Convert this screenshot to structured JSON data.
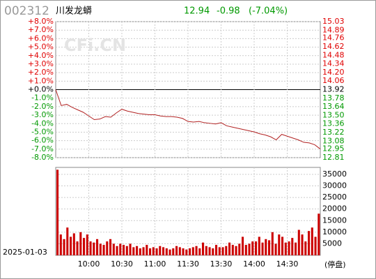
{
  "header": {
    "code": "002312",
    "name": "川发龙蟒",
    "price": "12.94",
    "change": "-0.98",
    "change_pct": "(-7.04%)"
  },
  "up_color": "#e00000",
  "down_color": "#009900",
  "flat_color": "#000000",
  "chart_data": [
    {
      "type": "line",
      "x": [
        0,
        5,
        10,
        15,
        20,
        25,
        30,
        35,
        40,
        45,
        50,
        55,
        60,
        65,
        70,
        75,
        80,
        85,
        90,
        95,
        100,
        105,
        110,
        115,
        120,
        125,
        130,
        135,
        140,
        145,
        150,
        155,
        160,
        165,
        170,
        175,
        180,
        185,
        190,
        195,
        200,
        205,
        210,
        215,
        220,
        225,
        230,
        235,
        240
      ],
      "series": [
        {
          "name": "price",
          "color": "#b22222",
          "axis": "y2",
          "values": [
            13.92,
            13.66,
            13.68,
            13.63,
            13.59,
            13.55,
            13.49,
            13.43,
            13.44,
            13.48,
            13.47,
            13.54,
            13.6,
            13.57,
            13.55,
            13.53,
            13.52,
            13.51,
            13.51,
            13.49,
            13.48,
            13.48,
            13.47,
            13.45,
            13.4,
            13.39,
            13.4,
            13.38,
            13.37,
            13.36,
            13.38,
            13.33,
            13.31,
            13.29,
            13.27,
            13.25,
            13.23,
            13.2,
            13.18,
            13.15,
            13.1,
            13.19,
            13.16,
            13.13,
            13.1,
            13.06,
            13.05,
            13.02,
            12.95
          ]
        }
      ],
      "xlim": [
        0,
        240
      ],
      "xticks": [
        {
          "value": 30,
          "label": "10:00"
        },
        {
          "value": 60,
          "label": "10:30"
        },
        {
          "value": 90,
          "label": "11:00"
        },
        {
          "value": 120,
          "label": "11:30"
        },
        {
          "value": 150,
          "label": "13:30"
        },
        {
          "value": 180,
          "label": "14:00"
        },
        {
          "value": 210,
          "label": "14:30"
        }
      ],
      "ylim": [
        -8,
        8
      ],
      "yticks": [
        {
          "value": 8,
          "label": "+8.0%"
        },
        {
          "value": 7,
          "label": "+7.0%"
        },
        {
          "value": 6,
          "label": "+6.0%"
        },
        {
          "value": 5,
          "label": "+5.0%"
        },
        {
          "value": 4,
          "label": "+4.0%"
        },
        {
          "value": 3,
          "label": "+3.0%"
        },
        {
          "value": 2,
          "label": "+2.0%"
        },
        {
          "value": 1,
          "label": "+1.0%"
        },
        {
          "value": 0,
          "label": "+0.0%"
        },
        {
          "value": -1,
          "label": "-1.0%"
        },
        {
          "value": -2,
          "label": "-2.0%"
        },
        {
          "value": -3,
          "label": "-3.0%"
        },
        {
          "value": -4,
          "label": "-4.0%"
        },
        {
          "value": -5,
          "label": "-5.0%"
        },
        {
          "value": -6,
          "label": "-6.0%"
        },
        {
          "value": -7,
          "label": "-7.0%"
        },
        {
          "value": -8,
          "label": "-8.0%"
        }
      ],
      "y2lim": [
        12.81,
        15.03
      ],
      "y2ticks": [
        15.03,
        14.89,
        14.76,
        14.62,
        14.48,
        14.34,
        {
          "value": 14.2,
          "label": "14.20"
        },
        14.06,
        13.92,
        13.78,
        13.64,
        {
          "value": 13.5,
          "label": "13.50"
        },
        13.36,
        13.22,
        13.08,
        12.95,
        12.81
      ],
      "grid": true
    },
    {
      "type": "bar",
      "date": "2025-01-03",
      "note": "(停盘)",
      "x": [
        0,
        3,
        6,
        9,
        12,
        15,
        18,
        21,
        24,
        27,
        30,
        33,
        36,
        39,
        42,
        45,
        48,
        51,
        54,
        57,
        60,
        63,
        66,
        69,
        72,
        75,
        78,
        81,
        84,
        87,
        90,
        93,
        96,
        99,
        102,
        105,
        108,
        111,
        114,
        117,
        120,
        123,
        126,
        129,
        132,
        135,
        138,
        141,
        144,
        147,
        150,
        153,
        156,
        159,
        162,
        165,
        168,
        171,
        174,
        177,
        180,
        183,
        186,
        189,
        192,
        195,
        198,
        201,
        204,
        207,
        210,
        213,
        216,
        219,
        222,
        225,
        228,
        231,
        234,
        237
      ],
      "values": [
        37000,
        9000,
        7000,
        12000,
        8000,
        9500,
        6000,
        10000,
        7500,
        9000,
        6000,
        5500,
        7000,
        5000,
        4500,
        6000,
        7000,
        5000,
        4000,
        5000,
        4500,
        4000,
        5000,
        3500,
        4000,
        3000,
        3500,
        4500,
        3000,
        3500,
        3000,
        4000,
        3500,
        3000,
        2500,
        3000,
        4000,
        3500,
        3000,
        2500,
        3000,
        3500,
        4000,
        3000,
        5500,
        4000,
        3500,
        3000,
        4500,
        3500,
        3500,
        4000,
        5500,
        4500,
        4000,
        5000,
        8000,
        4500,
        5000,
        6000,
        6000,
        8000,
        5500,
        7000,
        6500,
        10000,
        5000,
        9000,
        8000,
        5500,
        6000,
        7500,
        5500,
        11000,
        9000,
        6000,
        10500,
        12000,
        8000,
        18000
      ],
      "color": "#cc0000",
      "xlim": [
        0,
        240
      ],
      "ylim": [
        0,
        38000
      ],
      "yticks": [
        5000,
        10000,
        15000,
        20000,
        25000,
        30000,
        35000
      ],
      "grid": true
    }
  ]
}
